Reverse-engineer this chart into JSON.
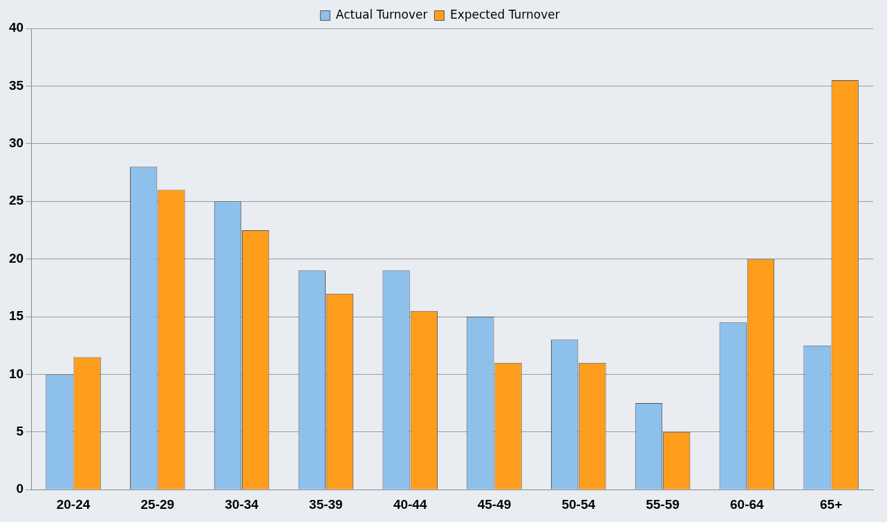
{
  "chart_data": {
    "type": "bar",
    "categories": [
      "20-24",
      "25-29",
      "30-34",
      "35-39",
      "40-44",
      "45-49",
      "50-54",
      "55-59",
      "60-64",
      "65+"
    ],
    "series": [
      {
        "name": "Actual Turnover",
        "color": "#8ec0ec",
        "values": [
          10,
          28,
          25,
          19,
          19,
          15,
          13,
          7.5,
          14.5,
          12.5
        ]
      },
      {
        "name": "Expected Turnover",
        "color": "#ff9d1c",
        "values": [
          11.5,
          26,
          22.5,
          17,
          15.5,
          11,
          11,
          5,
          20,
          35.5
        ]
      }
    ],
    "ylim": [
      0,
      40
    ],
    "yticks": [
      0,
      5,
      10,
      15,
      20,
      25,
      30,
      35,
      40
    ],
    "grid": "y",
    "legend": "top"
  }
}
